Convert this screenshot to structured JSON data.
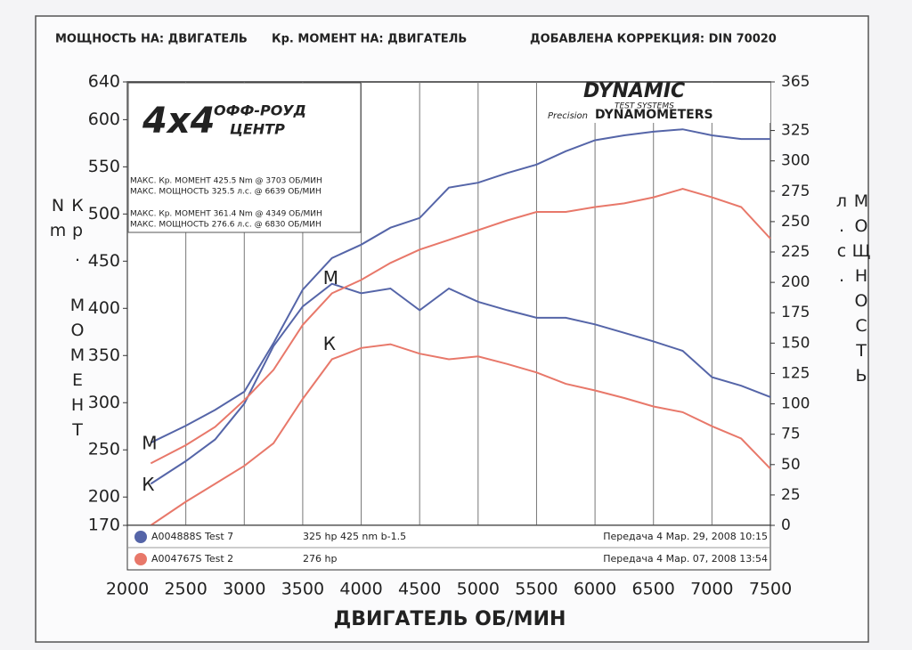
{
  "chart_data": {
    "type": "line",
    "header": [
      "МОЩНОСТЬ НА: ДВИГАТЕЛЬ",
      "Кр. МОМЕНТ НА: ДВИГАТЕЛЬ",
      "ДОБАВЛЕНА КОРРЕКЦИЯ: DIN 70020"
    ],
    "xlabel": "ДВИГАТЕЛЬ ОБ/МИН",
    "ylabel": "Кр. МОМЕНТ Nm",
    "y2label": "МОЩНОСТЬ л.с.",
    "logo_left": {
      "emblem": "4x4",
      "top": "ОФФ-РОУД",
      "bottom": "ЦЕНТР"
    },
    "logo_right": {
      "name": "DYNAMIC",
      "sub": "TEST SYSTEMS",
      "script": "Precision",
      "product": "DYNAMOMETERS"
    },
    "info": [
      {
        "text": "МАКС. Кр. МОМЕНТ 425.5 Nm @ 3703 ОБ/МИН",
        "color": "#4a5a9c"
      },
      {
        "text": "МАКС. МОЩНОСТЬ 325.5 л.с. @ 6639 ОБ/МИН",
        "color": "#4a5a9c"
      },
      {
        "text": "МАКС. Кр. МОМЕНТ 361.4 Nm @ 4349 ОБ/МИН",
        "color": "#e06a5a"
      },
      {
        "text": "МАКС. МОЩНОСТЬ 276.6 л.с. @ 6830 ОБ/МИН",
        "color": "#e06a5a"
      }
    ],
    "runs": [
      {
        "name": "A004888S Test 7",
        "note": "325 hp 425 nm b-1.5",
        "date": "Передача 4 Мар. 29, 2008 10:15",
        "color": "#5565a8"
      },
      {
        "name": "A004767S Test 2",
        "note": "276 hp",
        "date": "Передача 4 Мар. 07, 2008 13:54",
        "color": "#e8786a"
      }
    ],
    "x": [
      2200,
      2500,
      2750,
      3000,
      3250,
      3500,
      3750,
      4000,
      4250,
      4500,
      4750,
      5000,
      5250,
      5500,
      5750,
      6000,
      6250,
      6500,
      6750,
      7000,
      7250,
      7500
    ],
    "series": [
      {
        "label": "М",
        "color": "#5565a8",
        "axis": "y2",
        "values": [
          68,
          82,
          95,
          110,
          150,
          194,
          220,
          231,
          245,
          253,
          278,
          282,
          290,
          297,
          308,
          317,
          321,
          324,
          326,
          321,
          318,
          318
        ]
      },
      {
        "label": "К",
        "color": "#5565a8",
        "values": [
          214,
          238,
          261,
          299,
          360,
          402,
          426,
          416,
          421,
          398,
          421,
          407,
          398,
          390,
          390,
          383,
          374,
          365,
          355,
          327,
          318,
          306
        ]
      },
      {
        "label": "М",
        "color": "#e8786a",
        "axis": "y2",
        "values": [
          51,
          66,
          81,
          103,
          128,
          165,
          191,
          202,
          216,
          227,
          235,
          243,
          251,
          258,
          258,
          262,
          265,
          270,
          277,
          270,
          262,
          236
        ]
      },
      {
        "label": "К",
        "color": "#e8786a",
        "values": [
          170,
          195,
          214,
          233,
          257,
          304,
          346,
          358,
          362,
          352,
          346,
          349,
          341,
          332,
          320,
          313,
          305,
          296,
          290,
          275,
          262,
          230
        ]
      }
    ],
    "xlim": [
      2000,
      7500
    ],
    "xticks": [
      2000,
      2500,
      3000,
      3500,
      4000,
      4500,
      5000,
      5500,
      6000,
      6500,
      7000,
      7500
    ],
    "ylim": [
      170,
      640
    ],
    "yticks": [
      170,
      200,
      250,
      300,
      350,
      400,
      450,
      500,
      550,
      600,
      640
    ],
    "y2lim": [
      0,
      365
    ],
    "y2ticks": [
      0,
      25,
      50,
      75,
      100,
      125,
      150,
      175,
      200,
      225,
      250,
      275,
      300,
      325,
      365
    ],
    "grid": "x"
  }
}
